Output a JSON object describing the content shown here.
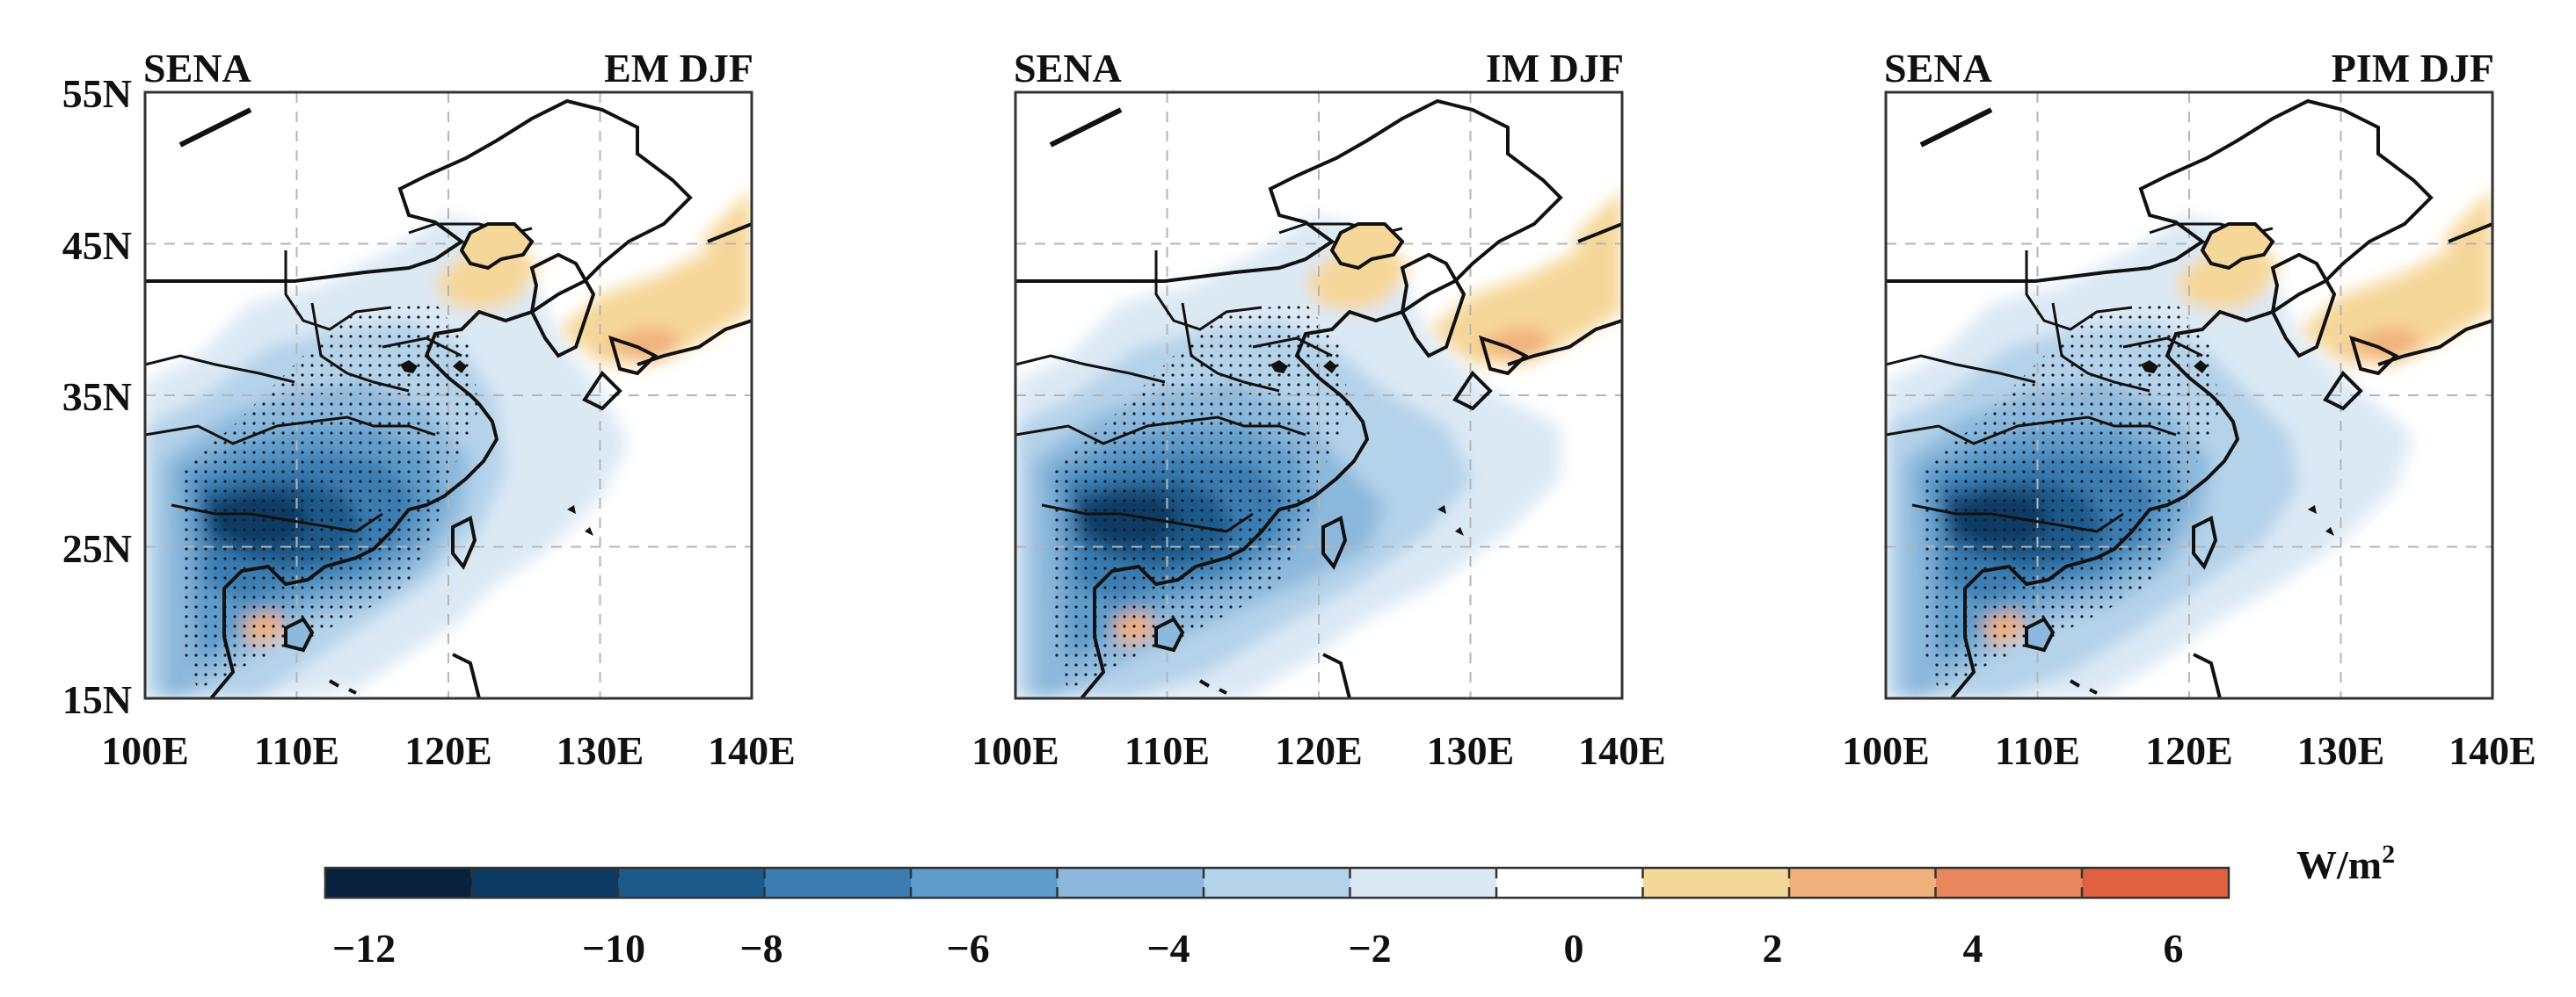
{
  "figure": {
    "panels": [
      {
        "left_label": "SENA",
        "right_label": "EM DJF",
        "variant": "em"
      },
      {
        "left_label": "SENA",
        "right_label": "IM DJF",
        "variant": "im"
      },
      {
        "left_label": "SENA",
        "right_label": "PIM DJF",
        "variant": "pim"
      }
    ],
    "lat_ticks": [
      "55N",
      "45N",
      "35N",
      "25N",
      "15N"
    ],
    "lon_ticks": [
      "100E",
      "110E",
      "120E",
      "130E",
      "140E"
    ],
    "colorbar": {
      "unit": "W/m",
      "unit_superscript": "2",
      "tick_labels": [
        "−12",
        "−10",
        "−8",
        "−6",
        "−4",
        "−2",
        "0",
        "2",
        "4",
        "6"
      ],
      "colors": [
        "#08213f",
        "#0d3a63",
        "#1c5a8c",
        "#3b7db2",
        "#5e9ccb",
        "#8bb8dc",
        "#b4d2ea",
        "#dbe9f5",
        "#ffffff",
        "#f6d79a",
        "#f0b07b",
        "#e8875e",
        "#e0613f"
      ]
    }
  }
}
